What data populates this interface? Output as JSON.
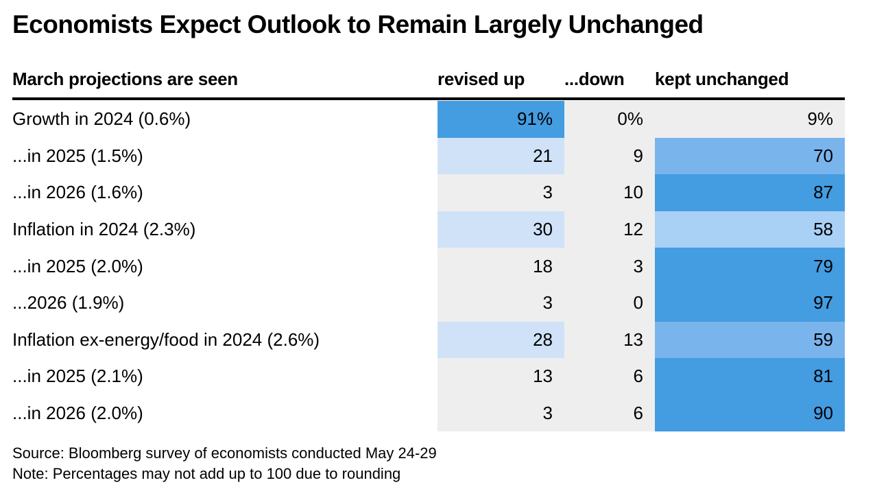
{
  "title": "Economists Expect Outlook to Remain Largely Unchanged",
  "header": {
    "label": "March projections are seen",
    "up": "revised up",
    "down": "...down",
    "kept": "kept unchanged"
  },
  "footer": {
    "source": "Source: Bloomberg survey of economists conducted May 24-29",
    "note": "Note: Percentages may not add up to 100 due to rounding"
  },
  "colors": {
    "background": "#ffffff",
    "cell_neutral": "#eeeeee",
    "shade_light": "#cfe2f7",
    "shade_medium_light": "#a9d0f5",
    "shade_medium": "#7ab4ec",
    "shade_strong": "#449ce1"
  },
  "chart_data": {
    "type": "table",
    "columns": [
      "March projections are seen",
      "revised up",
      "...down",
      "kept unchanged"
    ],
    "rows": [
      {
        "label": "Growth in 2024 (0.6%)",
        "up": "91%",
        "down": "0%",
        "kept": "9%",
        "up_value": 91,
        "down_value": 0,
        "kept_value": 9
      },
      {
        "label": "...in 2025 (1.5%)",
        "up": "21",
        "down": "9",
        "kept": "70",
        "up_value": 21,
        "down_value": 9,
        "kept_value": 70
      },
      {
        "label": "...in 2026 (1.6%)",
        "up": "3",
        "down": "10",
        "kept": "87",
        "up_value": 3,
        "down_value": 10,
        "kept_value": 87
      },
      {
        "label": "Inflation in 2024 (2.3%)",
        "up": "30",
        "down": "12",
        "kept": "58",
        "up_value": 30,
        "down_value": 12,
        "kept_value": 58
      },
      {
        "label": "...in 2025 (2.0%)",
        "up": "18",
        "down": "3",
        "kept": "79",
        "up_value": 18,
        "down_value": 3,
        "kept_value": 79
      },
      {
        "label": "...2026 (1.9%)",
        "up": "3",
        "down": "0",
        "kept": "97",
        "up_value": 3,
        "down_value": 0,
        "kept_value": 97
      },
      {
        "label": "Inflation ex-energy/food in 2024 (2.6%)",
        "up": "28",
        "down": "13",
        "kept": "59",
        "up_value": 28,
        "down_value": 13,
        "kept_value": 59
      },
      {
        "label": "...in 2025 (2.1%)",
        "up": "13",
        "down": "6",
        "kept": "81",
        "up_value": 13,
        "down_value": 6,
        "kept_value": 81
      },
      {
        "label": "...in 2026 (2.0%)",
        "up": "3",
        "down": "6",
        "kept": "90",
        "up_value": 3,
        "down_value": 6,
        "kept_value": 90
      }
    ]
  }
}
